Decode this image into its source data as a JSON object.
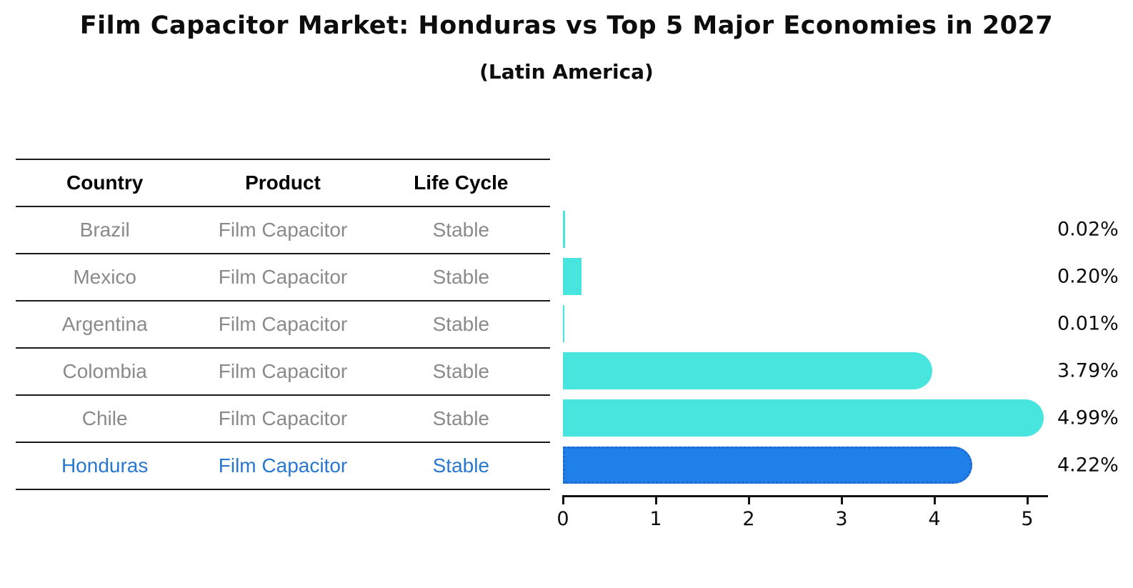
{
  "title": "Film Capacitor Market: Honduras vs Top 5 Major Economies in 2027",
  "subtitle": "(Latin America)",
  "table": {
    "headers": [
      "Country",
      "Product",
      "Life Cycle"
    ],
    "rows": [
      {
        "country": "Brazil",
        "product": "Film Capacitor",
        "life_cycle": "Stable"
      },
      {
        "country": "Mexico",
        "product": "Film Capacitor",
        "life_cycle": "Stable"
      },
      {
        "country": "Argentina",
        "product": "Film Capacitor",
        "life_cycle": "Stable"
      },
      {
        "country": "Colombia",
        "product": "Film Capacitor",
        "life_cycle": "Stable"
      },
      {
        "country": "Chile",
        "product": "Film Capacitor",
        "life_cycle": "Stable"
      },
      {
        "country": "Honduras",
        "product": "Film Capacitor",
        "life_cycle": "Stable"
      }
    ]
  },
  "chart_data": {
    "type": "bar",
    "orientation": "horizontal",
    "title": "Film Capacitor Market: Honduras vs Top 5 Major Economies in 2027",
    "subtitle": "(Latin America)",
    "categories": [
      "Brazil",
      "Mexico",
      "Argentina",
      "Colombia",
      "Chile",
      "Honduras"
    ],
    "values": [
      0.02,
      0.2,
      0.01,
      3.79,
      4.99,
      4.22
    ],
    "value_labels": [
      "0.02%",
      "0.20%",
      "0.01%",
      "3.79%",
      "4.99%",
      "4.22%"
    ],
    "xticks": [
      "0",
      "1",
      "2",
      "3",
      "4",
      "5"
    ],
    "xlim": [
      0,
      5.3
    ],
    "grid": false,
    "legend": false,
    "highlight_index": 5,
    "bar_color": "#48E5DE",
    "highlight_bar_color": "#1E80E8",
    "highlight_border_color": "#2268CC",
    "highlight_text_color": "#2878D2",
    "axis_color": "#111111",
    "value_label_color": "#0d0d0d",
    "table_text_color": "#8a8a8a"
  }
}
